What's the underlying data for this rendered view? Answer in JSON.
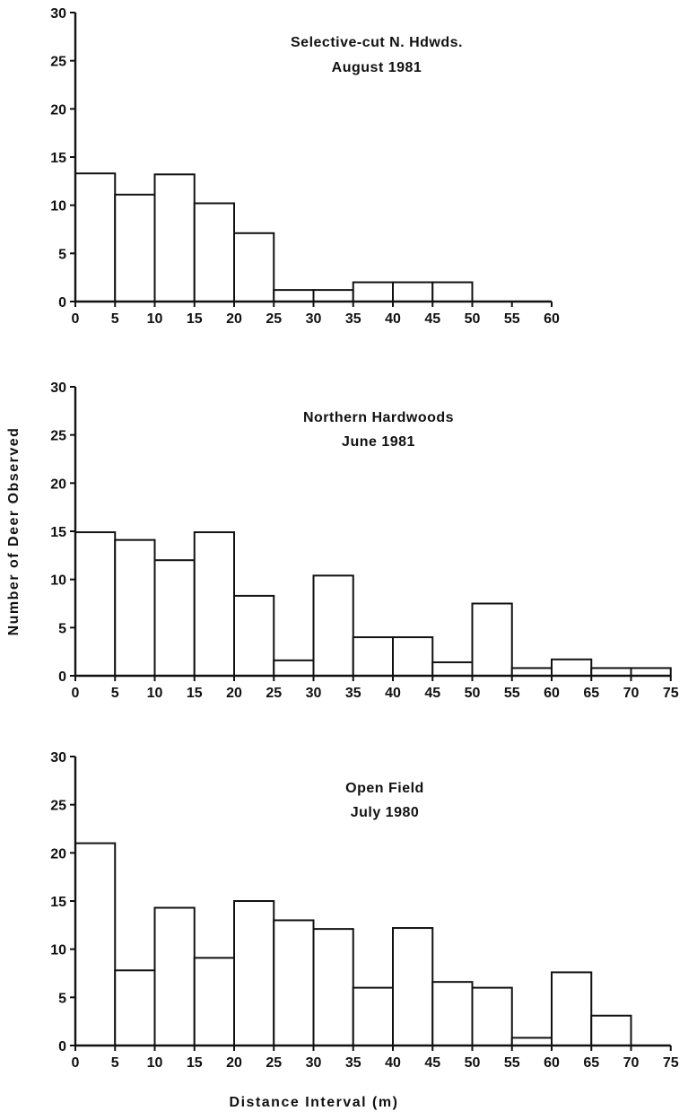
{
  "ylabel": "Number of Deer Observed",
  "xlabel": "Distance Interval (m)",
  "chart_data": [
    {
      "type": "bar",
      "title": "Selective-cut N. Hdwds.",
      "subtitle": "August 1981",
      "xlabel": "Distance Interval (m)",
      "ylabel": "Number of Deer Observed",
      "bin_edges": [
        0,
        5,
        10,
        15,
        20,
        25,
        30,
        35,
        40,
        45,
        50,
        55,
        60
      ],
      "categories": [
        "0-5",
        "5-10",
        "10-15",
        "15-20",
        "20-25",
        "25-30",
        "30-35",
        "35-40",
        "40-45",
        "45-50",
        "50-55",
        "55-60"
      ],
      "values": [
        13.3,
        11.1,
        13.2,
        10.2,
        7.1,
        1.2,
        1.2,
        2.0,
        2.0,
        2.0,
        0,
        0
      ],
      "x_ticks": [
        0,
        5,
        10,
        15,
        20,
        25,
        30,
        35,
        40,
        45,
        50,
        55,
        60
      ],
      "y_ticks": [
        0,
        5,
        10,
        15,
        20,
        25,
        30
      ],
      "xlim": [
        0,
        60
      ],
      "ylim": [
        0,
        30
      ],
      "grid": false
    },
    {
      "type": "bar",
      "title": "Northern Hardwoods",
      "subtitle": "June 1981",
      "xlabel": "Distance Interval (m)",
      "ylabel": "Number of Deer Observed",
      "bin_edges": [
        0,
        5,
        10,
        15,
        20,
        25,
        30,
        35,
        40,
        45,
        50,
        55,
        60,
        65,
        70,
        75
      ],
      "categories": [
        "0-5",
        "5-10",
        "10-15",
        "15-20",
        "20-25",
        "25-30",
        "30-35",
        "35-40",
        "40-45",
        "45-50",
        "50-55",
        "55-60",
        "60-65",
        "65-70",
        "70-75"
      ],
      "values": [
        14.9,
        14.1,
        12.0,
        14.9,
        8.3,
        1.6,
        10.4,
        4.0,
        4.0,
        1.4,
        7.5,
        0.8,
        1.7,
        0.8,
        0.8
      ],
      "x_ticks": [
        0,
        5,
        10,
        15,
        20,
        25,
        30,
        35,
        40,
        45,
        50,
        55,
        60,
        65,
        70,
        75
      ],
      "y_ticks": [
        0,
        5,
        10,
        15,
        20,
        25,
        30
      ],
      "xlim": [
        0,
        75
      ],
      "ylim": [
        0,
        30
      ],
      "grid": false
    },
    {
      "type": "bar",
      "title": "Open Field",
      "subtitle": "July 1980",
      "xlabel": "Distance Interval (m)",
      "ylabel": "Number of Deer Observed",
      "bin_edges": [
        0,
        5,
        10,
        15,
        20,
        25,
        30,
        35,
        40,
        45,
        50,
        55,
        60,
        65,
        70,
        75
      ],
      "categories": [
        "0-5",
        "5-10",
        "10-15",
        "15-20",
        "20-25",
        "25-30",
        "30-35",
        "35-40",
        "40-45",
        "45-50",
        "50-55",
        "55-60",
        "60-65",
        "65-70",
        "70-75"
      ],
      "values": [
        21.0,
        7.8,
        14.3,
        9.1,
        15.0,
        13.0,
        12.1,
        6.0,
        12.2,
        6.6,
        6.0,
        0.8,
        7.6,
        3.1,
        0
      ],
      "x_ticks": [
        0,
        5,
        10,
        15,
        20,
        25,
        30,
        35,
        40,
        45,
        50,
        55,
        60,
        65,
        70,
        75
      ],
      "y_ticks": [
        0,
        5,
        10,
        15,
        20,
        25,
        30
      ],
      "xlim": [
        0,
        75
      ],
      "ylim": [
        0,
        30
      ],
      "grid": false
    }
  ]
}
